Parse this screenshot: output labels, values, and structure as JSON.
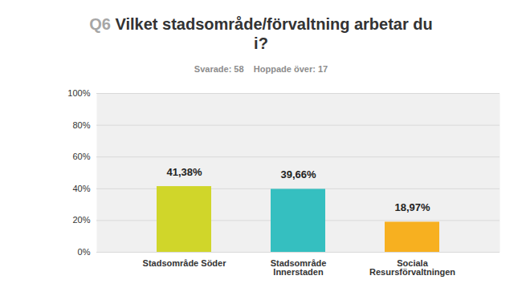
{
  "chart_data": {
    "type": "bar",
    "title": "Q6 Vilket stadsområde/förvaltning arbetar du i?",
    "subtitle": "Svarade: 58    Hoppade över: 17",
    "categories": [
      "Stadsområde Söder",
      "Stadsområde Innerstaden",
      "Sociala Resursförvaltningen"
    ],
    "values": [
      41.38,
      39.66,
      18.97
    ],
    "value_labels": [
      "41,38%",
      "39,66%",
      "18,97%"
    ],
    "colors": [
      "#d0d62a",
      "#35bfc0",
      "#f7b020"
    ],
    "ylim": [
      0,
      100
    ],
    "yticks": [
      {
        "value": 0,
        "label": "0%"
      },
      {
        "value": 20,
        "label": "20%"
      },
      {
        "value": 40,
        "label": "40%"
      },
      {
        "value": 60,
        "label": "60%"
      },
      {
        "value": 80,
        "label": "80%"
      },
      {
        "value": 100,
        "label": "100%"
      }
    ],
    "grid": true,
    "data_labels": true
  }
}
